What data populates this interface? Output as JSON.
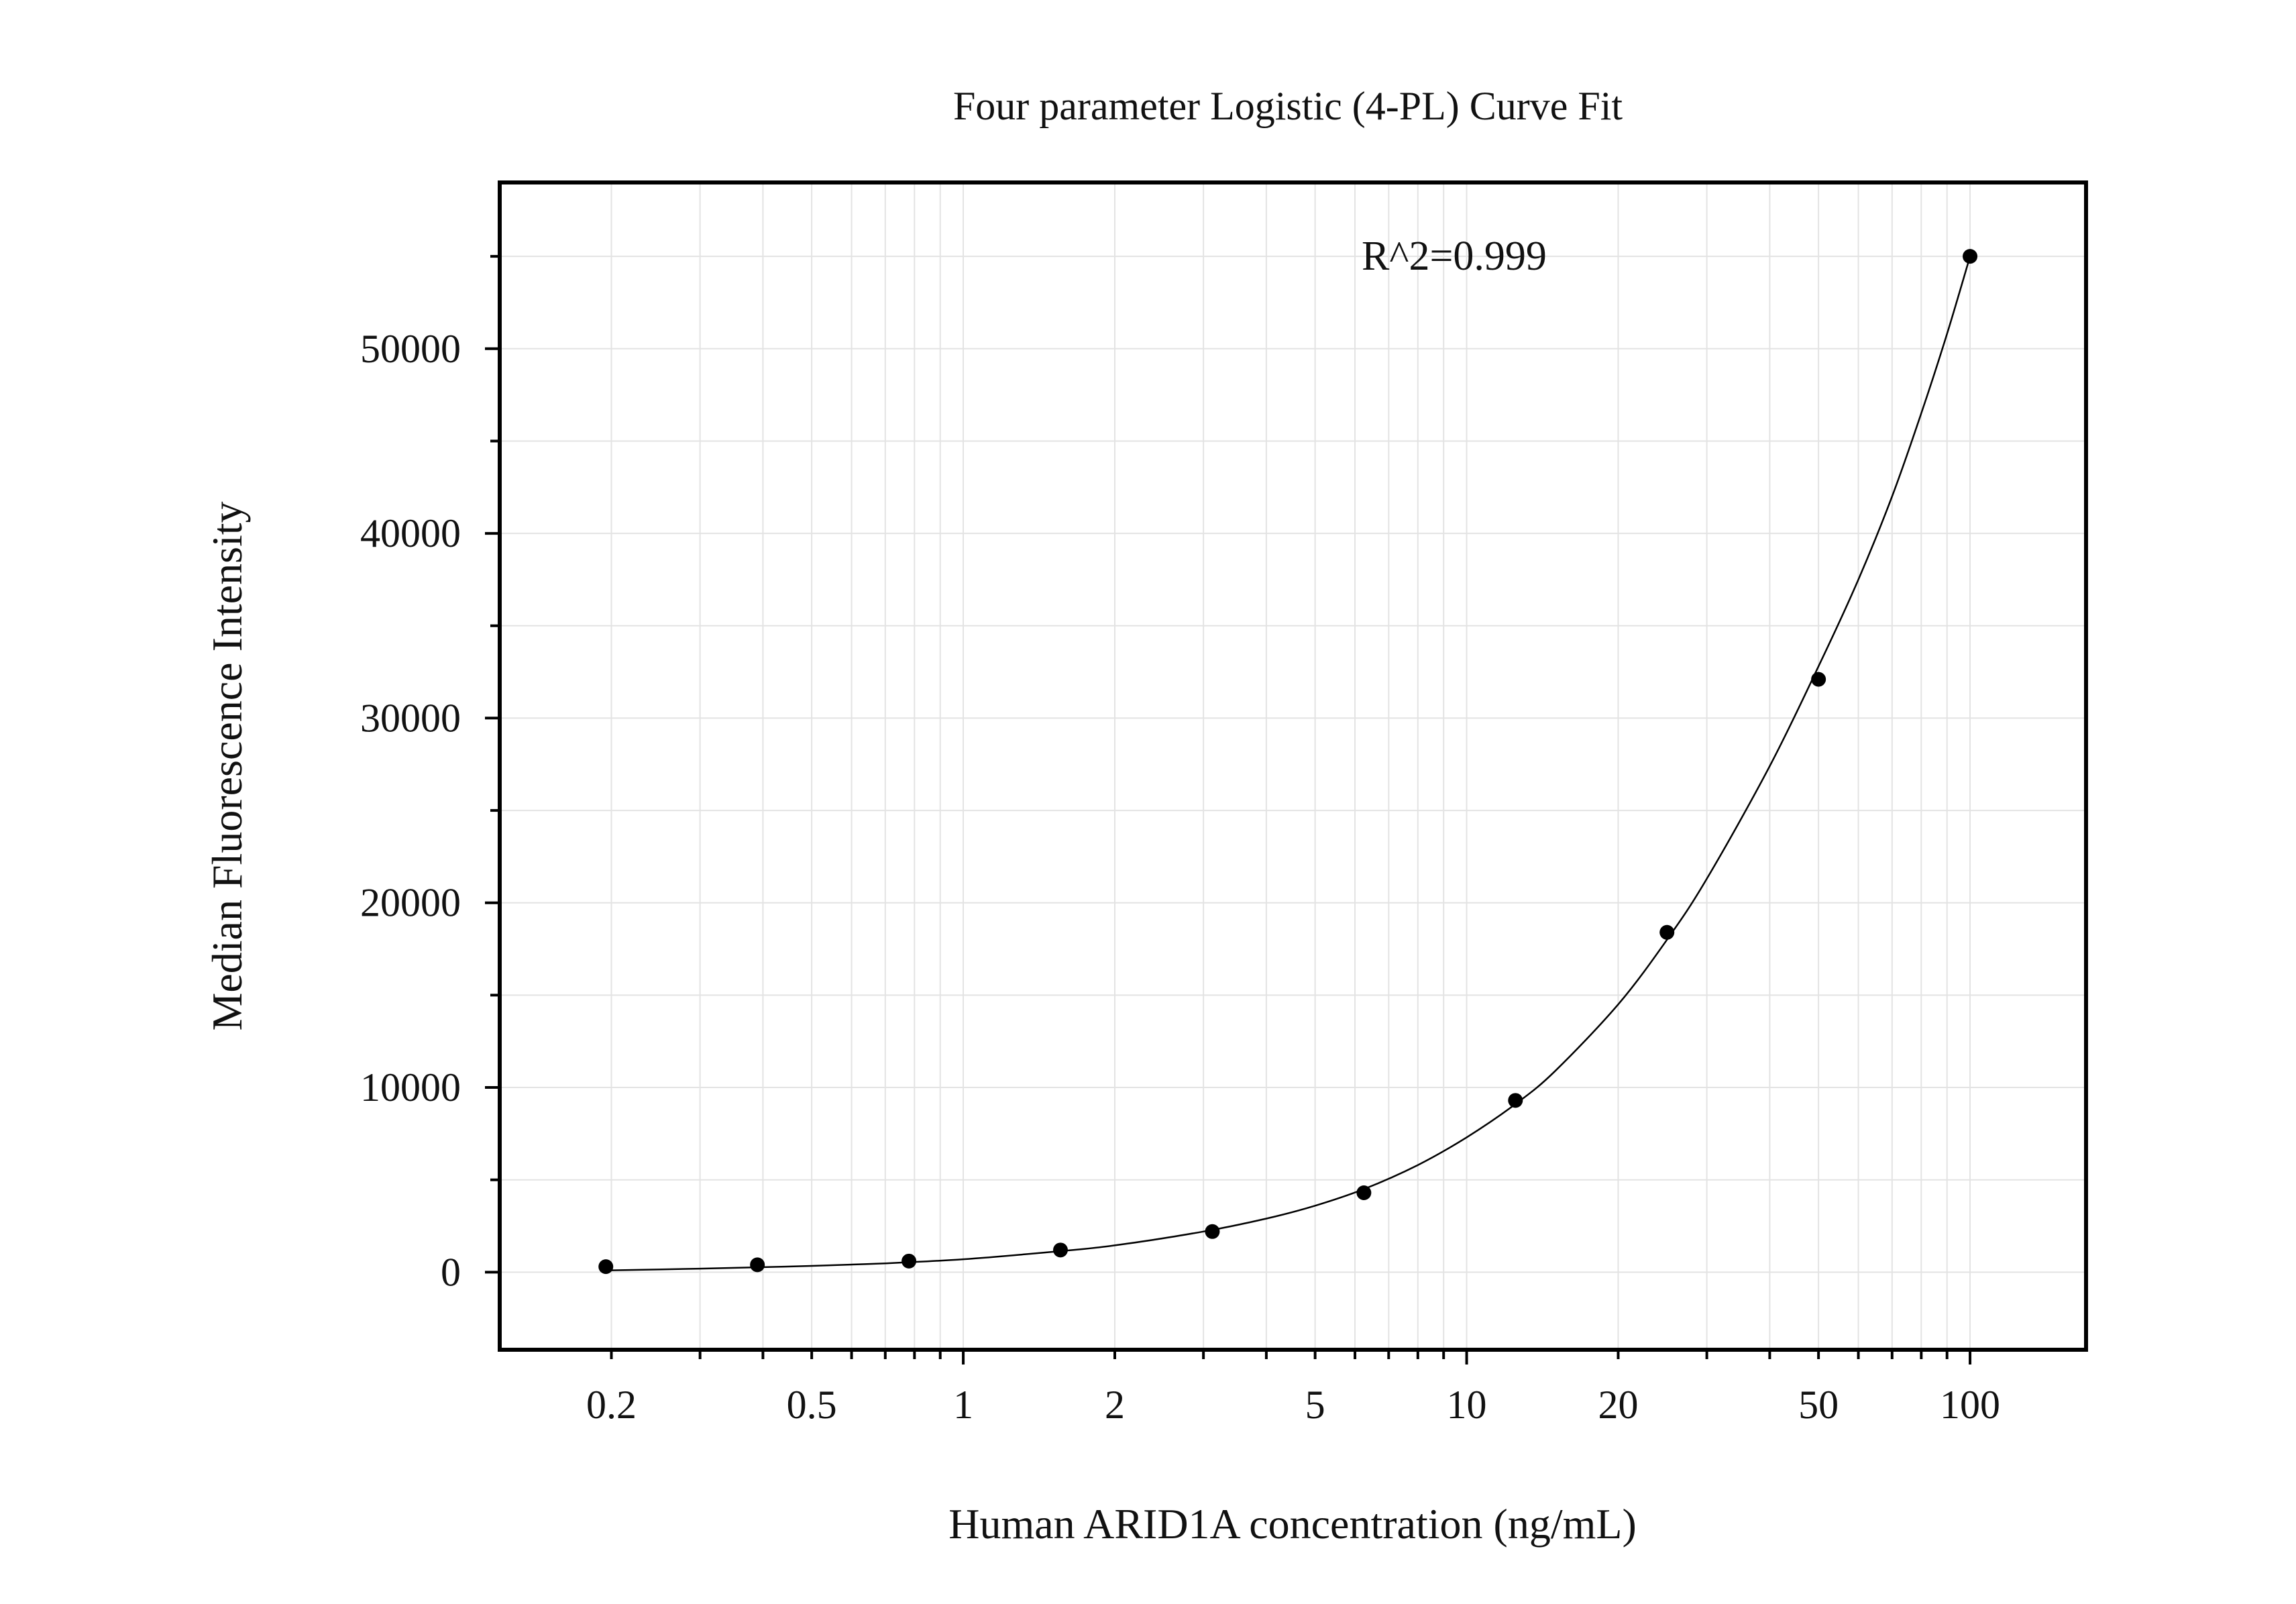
{
  "chart_data": {
    "type": "scatter",
    "title": "Four parameter Logistic (4-PL) Curve Fit",
    "xlabel": "Human ARID1A concentration (ng/mL)",
    "ylabel": "Median Fluorescence Intensity",
    "x_scale": "log",
    "xlim": [
      0.12,
      170
    ],
    "ylim": [
      -4200,
      59000
    ],
    "x_ticks": [
      {
        "value": 0.2,
        "label": "0.2"
      },
      {
        "value": 0.5,
        "label": "0.5"
      },
      {
        "value": 1,
        "label": "1"
      },
      {
        "value": 2,
        "label": "2"
      },
      {
        "value": 5,
        "label": "5"
      },
      {
        "value": 10,
        "label": "10"
      },
      {
        "value": 20,
        "label": "20"
      },
      {
        "value": 50,
        "label": "50"
      },
      {
        "value": 100,
        "label": "100"
      }
    ],
    "y_ticks": [
      {
        "value": 0,
        "label": "0"
      },
      {
        "value": 10000,
        "label": "10000"
      },
      {
        "value": 20000,
        "label": "20000"
      },
      {
        "value": 30000,
        "label": "30000"
      },
      {
        "value": 40000,
        "label": "40000"
      },
      {
        "value": 50000,
        "label": "50000"
      }
    ],
    "y_minor_ticks": [
      5000,
      15000,
      25000,
      35000,
      45000,
      55000
    ],
    "grid": true,
    "annotation": "R^2=0.999",
    "points": [
      {
        "x": 0.195,
        "y": 300
      },
      {
        "x": 0.39,
        "y": 400
      },
      {
        "x": 0.78,
        "y": 600
      },
      {
        "x": 1.56,
        "y": 1200
      },
      {
        "x": 3.125,
        "y": 2200
      },
      {
        "x": 6.25,
        "y": 4300
      },
      {
        "x": 12.5,
        "y": 9300
      },
      {
        "x": 25,
        "y": 18400
      },
      {
        "x": 50,
        "y": 32100
      },
      {
        "x": 100,
        "y": 55000
      }
    ],
    "curve": [
      {
        "x": 0.2,
        "y": 100
      },
      {
        "x": 0.3,
        "y": 190
      },
      {
        "x": 0.4,
        "y": 270
      },
      {
        "x": 0.5,
        "y": 340
      },
      {
        "x": 0.7,
        "y": 480
      },
      {
        "x": 1,
        "y": 700
      },
      {
        "x": 1.5,
        "y": 1100
      },
      {
        "x": 2,
        "y": 1450
      },
      {
        "x": 3,
        "y": 2200
      },
      {
        "x": 4,
        "y": 2900
      },
      {
        "x": 5,
        "y": 3600
      },
      {
        "x": 6.25,
        "y": 4500
      },
      {
        "x": 8,
        "y": 5800
      },
      {
        "x": 10,
        "y": 7300
      },
      {
        "x": 12.5,
        "y": 9100
      },
      {
        "x": 15,
        "y": 10900
      },
      {
        "x": 20,
        "y": 14500
      },
      {
        "x": 25,
        "y": 18000
      },
      {
        "x": 30,
        "y": 21300
      },
      {
        "x": 40,
        "y": 27400
      },
      {
        "x": 50,
        "y": 32800
      },
      {
        "x": 60,
        "y": 37500
      },
      {
        "x": 70,
        "y": 42000
      },
      {
        "x": 80,
        "y": 46500
      },
      {
        "x": 90,
        "y": 50800
      },
      {
        "x": 100,
        "y": 55000
      }
    ],
    "colors": {
      "marker": "#000000",
      "curve": "#000000",
      "frame": "#000000",
      "grid": "#e3e3e3",
      "background": "#ffffff"
    }
  }
}
